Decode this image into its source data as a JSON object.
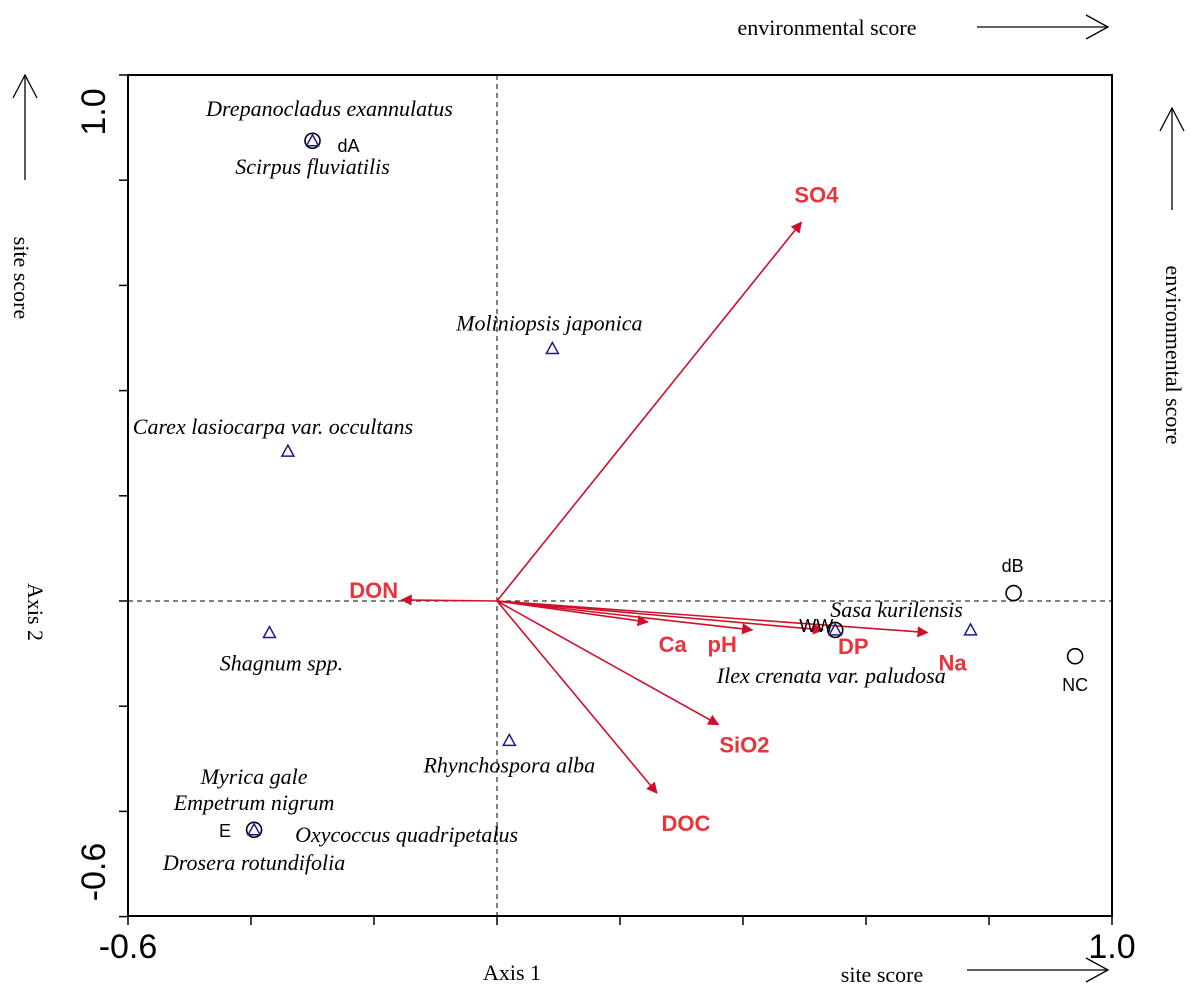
{
  "chart_data": {
    "type": "scatter",
    "subtype": "ordination biplot",
    "xlabel": "Axis 1",
    "ylabel": "Axis 2",
    "xlim": [
      -0.6,
      1.0
    ],
    "ylim": [
      -0.6,
      1.0
    ],
    "xtick_labels": [
      "-0.6",
      "1.0"
    ],
    "ytick_labels": [
      "-0.6",
      "1.0"
    ],
    "x_minor_ticks": [
      -0.6,
      -0.4,
      -0.2,
      0.0,
      0.2,
      0.4,
      0.6,
      0.8,
      1.0
    ],
    "y_minor_ticks": [
      -0.6,
      -0.4,
      -0.2,
      0.0,
      0.2,
      0.4,
      0.6,
      0.8,
      1.0
    ],
    "reference_lines": {
      "x": 0,
      "y": 0,
      "style": "dashed"
    },
    "grid": false,
    "legend": "none",
    "corner_labels": {
      "top_env": "environmental score",
      "right_env": "environmental score",
      "left_site": "site score",
      "bottom_site": "site score"
    },
    "colors": {
      "vector": "#d0102a",
      "vector_label": "#e8343c",
      "species": "#1a1a8c",
      "site": "#000000"
    },
    "species": [
      {
        "name": "Drepanocladus exannulatus",
        "x": -0.3,
        "y": 0.875
      },
      {
        "name": "Scirpus fluviatilis",
        "x": -0.3,
        "y": 0.875
      },
      {
        "name": "Moliniopsis japonica",
        "x": 0.09,
        "y": 0.48
      },
      {
        "name": "Carex lasiocarpa var. occultans",
        "x": -0.34,
        "y": 0.285
      },
      {
        "name": "Shagnum spp.",
        "x": -0.37,
        "y": -0.06
      },
      {
        "name": "Sasa kurilensis",
        "x": 0.77,
        "y": -0.055
      },
      {
        "name": "Ilex crenata var. paludosa",
        "x": 0.55,
        "y": -0.055
      },
      {
        "name": "Rhynchospora alba",
        "x": 0.02,
        "y": -0.265
      },
      {
        "name": "Myrica gale",
        "x": -0.395,
        "y": -0.435
      },
      {
        "name": "Empetrum nigrum",
        "x": -0.395,
        "y": -0.435
      },
      {
        "name": "Oxycoccus quadripetalus",
        "x": -0.395,
        "y": -0.435
      },
      {
        "name": "Drosera rotundifolia",
        "x": -0.395,
        "y": -0.435
      }
    ],
    "sites": [
      {
        "name": "dA",
        "x": -0.3,
        "y": 0.875
      },
      {
        "name": "dB",
        "x": 0.84,
        "y": 0.015
      },
      {
        "name": "WW",
        "x": 0.55,
        "y": -0.055
      },
      {
        "name": "DP",
        "x": 0.55,
        "y": -0.055
      },
      {
        "name": "NC",
        "x": 0.94,
        "y": -0.105
      },
      {
        "name": "E",
        "x": -0.395,
        "y": -0.435
      }
    ],
    "vectors": [
      {
        "name": "SO4",
        "x": 0.495,
        "y": 0.72
      },
      {
        "name": "DON",
        "x": -0.155,
        "y": 0.002
      },
      {
        "name": "Ca",
        "x": 0.245,
        "y": -0.04
      },
      {
        "name": "pH",
        "x": 0.415,
        "y": -0.055
      },
      {
        "name": "DP",
        "x": 0.53,
        "y": -0.055
      },
      {
        "name": "Na",
        "x": 0.7,
        "y": -0.06
      },
      {
        "name": "SiO2",
        "x": 0.36,
        "y": -0.235
      },
      {
        "name": "DOC",
        "x": 0.26,
        "y": -0.365
      }
    ]
  }
}
